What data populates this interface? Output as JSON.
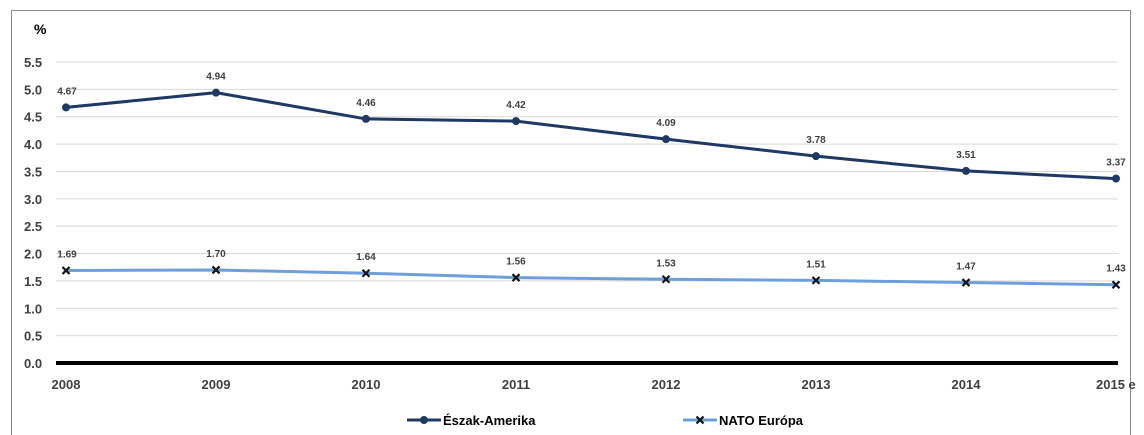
{
  "chart_data": {
    "type": "line",
    "ylabel": "%",
    "categories": [
      "2008",
      "2009",
      "2010",
      "2011",
      "2012",
      "2013",
      "2014",
      "2015 e"
    ],
    "ylim": [
      0,
      5.5
    ],
    "yticks": [
      "0.0",
      "0.5",
      "1.0",
      "1.5",
      "2.0",
      "2.5",
      "3.0",
      "3.5",
      "4.0",
      "4.5",
      "5.0",
      "5.5"
    ],
    "grid": true,
    "legend_position": "bottom",
    "series": [
      {
        "name": "Észak-Amerika",
        "values": [
          4.67,
          4.94,
          4.46,
          4.42,
          4.09,
          3.78,
          3.51,
          3.37
        ],
        "labels": [
          "4.67",
          "4.94",
          "4.46",
          "4.42",
          "4.09",
          "3.78",
          "3.51",
          "3.37"
        ],
        "color": "#1f3864",
        "marker": "circle"
      },
      {
        "name": "NATO Európa",
        "values": [
          1.69,
          1.7,
          1.64,
          1.56,
          1.53,
          1.51,
          1.47,
          1.43
        ],
        "labels": [
          "1.69",
          "1.70",
          "1.64",
          "1.56",
          "1.53",
          "1.51",
          "1.47",
          "1.43"
        ],
        "color": "#6f9fdb",
        "marker": "x"
      }
    ]
  }
}
